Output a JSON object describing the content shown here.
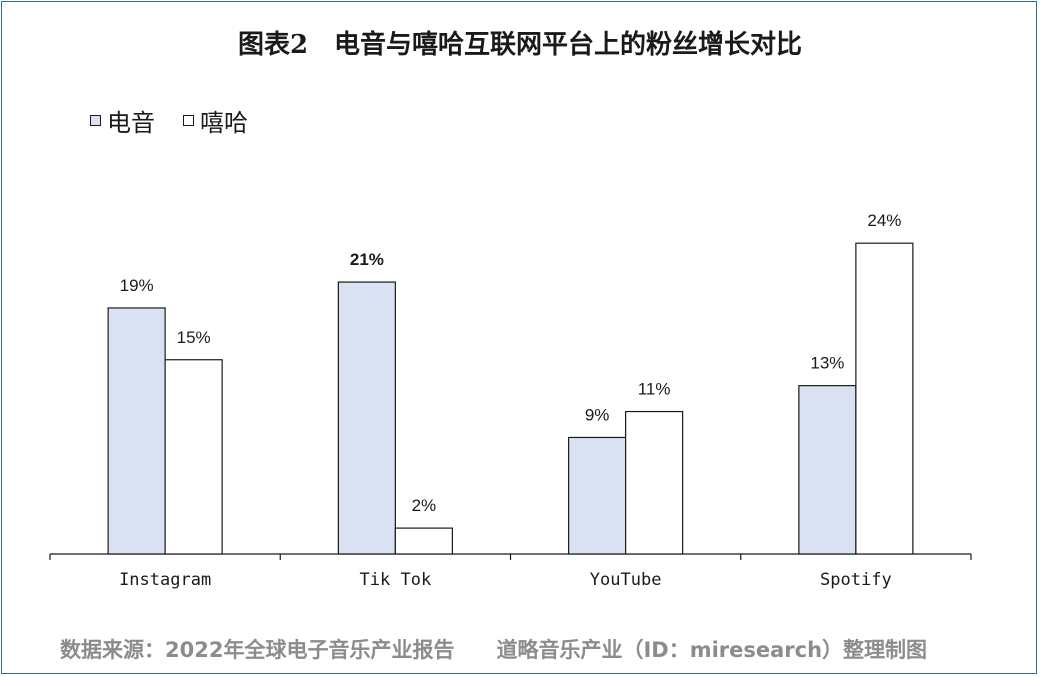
{
  "title": "图表2　电音与嘻哈互联网平台上的粉丝增长对比",
  "source": "数据来源：2022年全球电子音乐产业报告　　道略音乐产业（ID：miresearch）整理制图",
  "colors": {
    "frame": "#2e6e8e",
    "edm": "#d9e1f2",
    "hiphop": "#ffffff",
    "outline": "#1a1a1a"
  },
  "chart_data": {
    "type": "bar",
    "categories": [
      "Instagram",
      "Tik Tok",
      "YouTube",
      "Spotify"
    ],
    "series": [
      {
        "name": "电音",
        "values": [
          19,
          21,
          9,
          13
        ],
        "labels": [
          "19%",
          "21%",
          "9%",
          "13%"
        ],
        "color": "#d9e1f2"
      },
      {
        "name": "嘻哈",
        "values": [
          15,
          2,
          11,
          24
        ],
        "labels": [
          "15%",
          "2%",
          "11%",
          "24%"
        ],
        "color": "#ffffff"
      }
    ],
    "ylim": [
      0,
      28
    ],
    "ylabel": "",
    "xlabel": "",
    "grid": false,
    "legend": "top-left",
    "bold_labels": [
      "21%"
    ]
  }
}
